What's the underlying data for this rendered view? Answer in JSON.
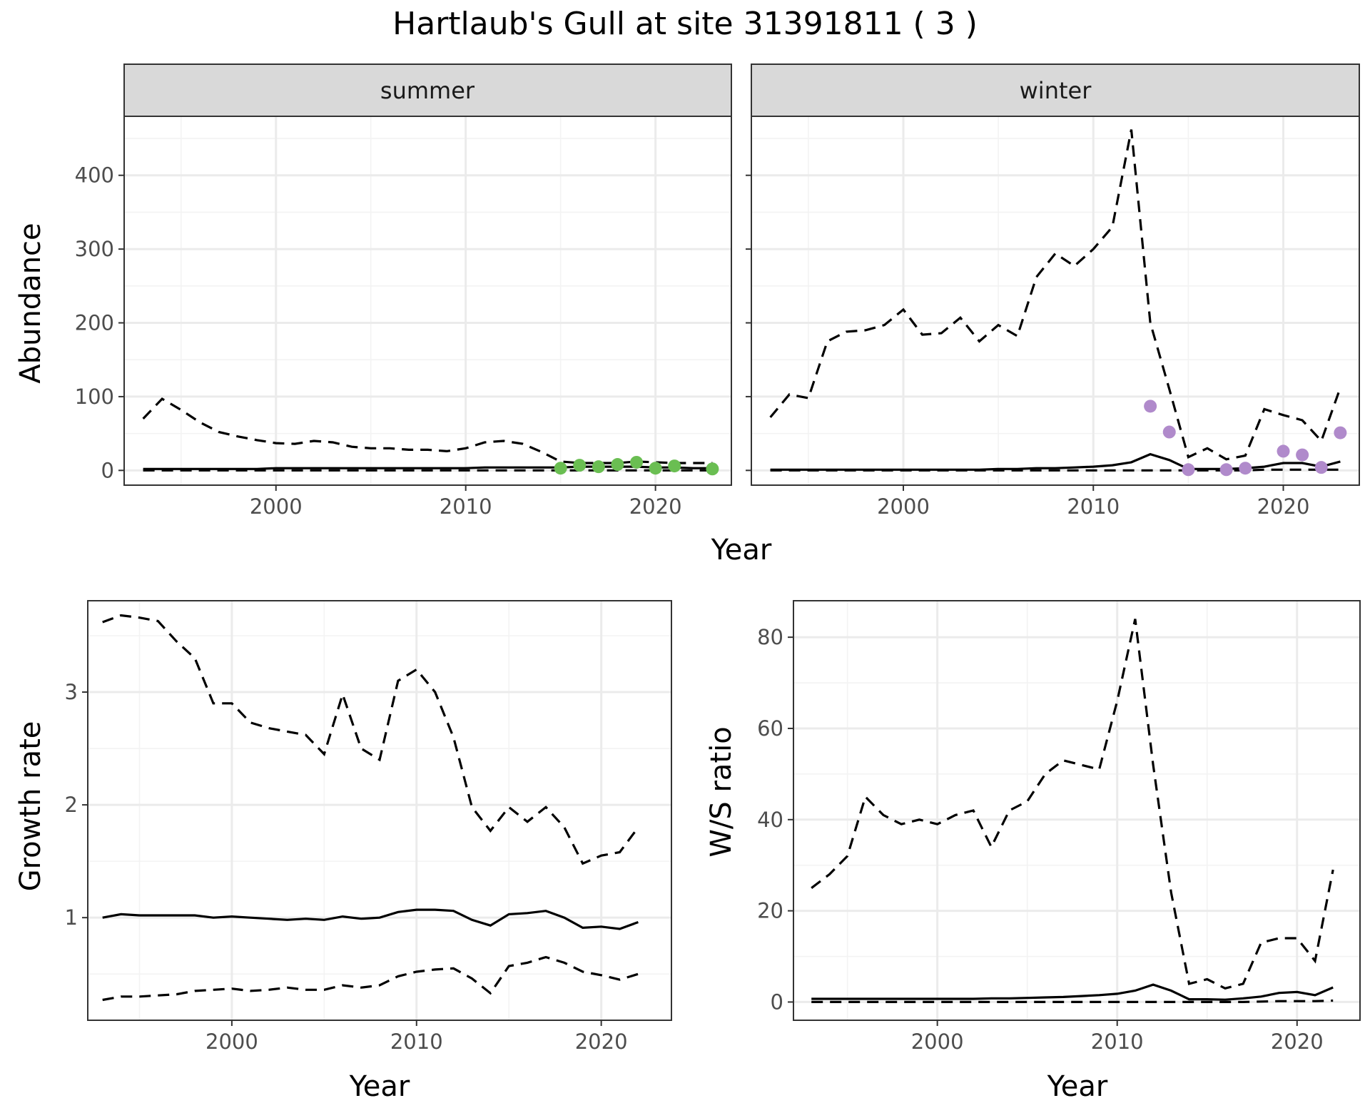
{
  "title": "Hartlaub's Gull at site 31391811 ( 3 )",
  "chart_data": [
    {
      "type": "line",
      "panel": "summer",
      "strip_label": "summer",
      "xlabel": "Year",
      "ylabel": "Abundance",
      "xlim": [
        1992,
        2024
      ],
      "ylim": [
        -20,
        480
      ],
      "x_ticks": [
        2000,
        2010,
        2020
      ],
      "y_ticks": [
        0,
        100,
        200,
        300,
        400
      ],
      "grid": true,
      "x": [
        1993,
        1994,
        1995,
        1996,
        1997,
        1998,
        1999,
        2000,
        2001,
        2002,
        2003,
        2004,
        2005,
        2006,
        2007,
        2008,
        2009,
        2010,
        2011,
        2012,
        2013,
        2014,
        2015,
        2016,
        2017,
        2018,
        2019,
        2020,
        2021,
        2022,
        2023
      ],
      "estimate": [
        2,
        2,
        2,
        2,
        2,
        2,
        2,
        3,
        3,
        3,
        3,
        3,
        3,
        3,
        3,
        3,
        3,
        3,
        4,
        4,
        4,
        4,
        4,
        5,
        5,
        5,
        5,
        4,
        4,
        3,
        3
      ],
      "upper": [
        70,
        97,
        82,
        65,
        52,
        46,
        41,
        37,
        36,
        40,
        38,
        32,
        30,
        30,
        28,
        28,
        26,
        30,
        38,
        40,
        36,
        25,
        12,
        10,
        10,
        10,
        12,
        11,
        10,
        10,
        10
      ],
      "lower": [
        0,
        0,
        0,
        0,
        0,
        0,
        0,
        0,
        0,
        0,
        0,
        0,
        0,
        0,
        0,
        0,
        0,
        0,
        0,
        0,
        0,
        0,
        0,
        0,
        0,
        0,
        0,
        0,
        0,
        0,
        0
      ],
      "observed_x": [
        2015,
        2016,
        2017,
        2018,
        2019,
        2020,
        2021,
        2023
      ],
      "observed_y": [
        3,
        7,
        5,
        8,
        11,
        3,
        6,
        2
      ],
      "point_color": "#6abe52"
    },
    {
      "type": "line",
      "panel": "winter",
      "strip_label": "winter",
      "xlabel": "Year",
      "ylabel": "Abundance",
      "xlim": [
        1992,
        2024
      ],
      "ylim": [
        -20,
        480
      ],
      "x_ticks": [
        2000,
        2010,
        2020
      ],
      "y_ticks": [
        0,
        100,
        200,
        300,
        400
      ],
      "grid": true,
      "x": [
        1993,
        1994,
        1995,
        1996,
        1997,
        1998,
        1999,
        2000,
        2001,
        2002,
        2003,
        2004,
        2005,
        2006,
        2007,
        2008,
        2009,
        2010,
        2011,
        2012,
        2013,
        2014,
        2015,
        2016,
        2017,
        2018,
        2019,
        2020,
        2021,
        2022,
        2023
      ],
      "estimate": [
        1,
        1,
        1,
        1,
        1,
        1,
        1,
        1,
        1,
        1,
        1,
        1,
        2,
        2,
        3,
        3,
        4,
        5,
        7,
        11,
        22,
        14,
        2,
        2,
        2,
        3,
        5,
        10,
        10,
        5,
        12
      ],
      "upper": [
        72,
        103,
        98,
        175,
        188,
        190,
        197,
        218,
        184,
        186,
        207,
        175,
        197,
        182,
        262,
        294,
        277,
        300,
        330,
        462,
        200,
        110,
        18,
        30,
        15,
        20,
        83,
        75,
        68,
        40,
        112
      ],
      "lower": [
        0,
        0,
        0,
        0,
        0,
        0,
        0,
        0,
        0,
        0,
        0,
        0,
        0,
        0,
        0,
        0,
        0,
        0,
        0,
        0,
        0,
        0,
        0,
        0,
        0,
        0,
        1,
        1,
        1,
        1,
        1
      ],
      "observed_x": [
        2013,
        2014,
        2015,
        2017,
        2018,
        2020,
        2021,
        2022,
        2023
      ],
      "observed_y": [
        87,
        52,
        1,
        1,
        3,
        26,
        21,
        4,
        51
      ],
      "point_color": "#b08acb"
    },
    {
      "type": "line",
      "panel": "growth",
      "xlabel": "Year",
      "ylabel": "Growth rate",
      "xlim": [
        1992.2,
        2023.8
      ],
      "ylim": [
        0.09,
        3.81
      ],
      "x_ticks": [
        2000,
        2010,
        2020
      ],
      "y_ticks": [
        1,
        2,
        3
      ],
      "grid": true,
      "x": [
        1993,
        1994,
        1995,
        1996,
        1997,
        1998,
        1999,
        2000,
        2001,
        2002,
        2003,
        2004,
        2005,
        2006,
        2007,
        2008,
        2009,
        2010,
        2011,
        2012,
        2013,
        2014,
        2015,
        2016,
        2017,
        2018,
        2019,
        2020,
        2021,
        2022
      ],
      "estimate": [
        1.0,
        1.03,
        1.02,
        1.02,
        1.02,
        1.02,
        1.0,
        1.01,
        1.0,
        0.99,
        0.98,
        0.99,
        0.98,
        1.01,
        0.99,
        1.0,
        1.05,
        1.07,
        1.07,
        1.06,
        0.98,
        0.93,
        1.03,
        1.04,
        1.06,
        1.0,
        0.91,
        0.92,
        0.9,
        0.96
      ],
      "upper": [
        3.62,
        3.68,
        3.66,
        3.63,
        3.45,
        3.3,
        2.9,
        2.9,
        2.73,
        2.68,
        2.65,
        2.62,
        2.45,
        2.98,
        2.5,
        2.4,
        3.1,
        3.2,
        3.0,
        2.6,
        1.98,
        1.77,
        1.98,
        1.85,
        1.98,
        1.8,
        1.48,
        1.55,
        1.58,
        1.8
      ],
      "lower": [
        0.27,
        0.3,
        0.3,
        0.31,
        0.32,
        0.35,
        0.36,
        0.37,
        0.35,
        0.36,
        0.38,
        0.36,
        0.36,
        0.4,
        0.38,
        0.4,
        0.48,
        0.52,
        0.54,
        0.55,
        0.46,
        0.33,
        0.57,
        0.6,
        0.65,
        0.6,
        0.52,
        0.49,
        0.45,
        0.5
      ]
    },
    {
      "type": "line",
      "panel": "ratio",
      "xlabel": "Year",
      "ylabel": "W/S ratio",
      "xlim": [
        1992,
        2023.5
      ],
      "ylim": [
        -4,
        88
      ],
      "x_ticks": [
        2000,
        2010,
        2020
      ],
      "y_ticks": [
        0,
        20,
        40,
        60,
        80
      ],
      "grid": true,
      "x": [
        1993,
        1994,
        1995,
        1996,
        1997,
        1998,
        1999,
        2000,
        2001,
        2002,
        2003,
        2004,
        2005,
        2006,
        2007,
        2008,
        2009,
        2010,
        2011,
        2012,
        2013,
        2014,
        2015,
        2016,
        2017,
        2018,
        2019,
        2020,
        2021,
        2022
      ],
      "estimate": [
        0.7,
        0.7,
        0.7,
        0.7,
        0.7,
        0.7,
        0.7,
        0.7,
        0.7,
        0.7,
        0.8,
        0.8,
        0.9,
        1.0,
        1.1,
        1.3,
        1.5,
        1.8,
        2.5,
        3.8,
        2.5,
        0.6,
        0.6,
        0.5,
        0.8,
        1.2,
        2.0,
        2.2,
        1.5,
        3.2
      ],
      "upper": [
        25,
        28,
        32,
        45,
        41,
        39,
        40,
        39,
        41,
        42,
        34,
        42,
        44,
        50,
        53,
        52,
        51,
        66,
        84,
        52,
        24,
        4,
        5,
        3,
        4,
        13,
        14,
        14,
        9,
        29
      ],
      "lower": [
        0,
        0,
        0,
        0,
        0,
        0,
        0,
        0,
        0,
        0,
        0,
        0,
        0,
        0,
        0,
        0,
        0,
        0,
        0,
        0,
        0,
        0,
        0,
        0,
        0,
        0.1,
        0.2,
        0.2,
        0.2,
        0.3
      ]
    }
  ]
}
